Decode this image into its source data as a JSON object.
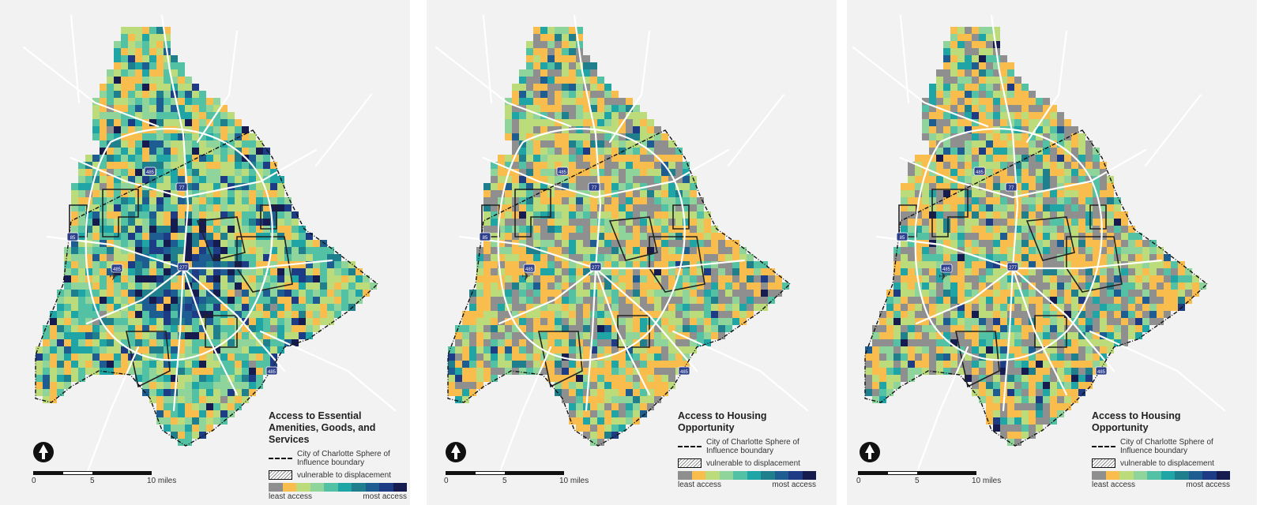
{
  "panels": [
    {
      "title": "Access to Essential Amenities, Goods, and Services",
      "legend": {
        "boundary_label": "City of Charlotte Sphere of Influence boundary",
        "vulnerable_label": "vulnerable to displacement",
        "least_label": "least access",
        "most_label": "most access"
      },
      "scale": {
        "zero": "0",
        "five": "5",
        "ten": "10 miles"
      }
    },
    {
      "title": "Access to Housing Opportunity",
      "legend": {
        "boundary_label": "City of Charlotte Sphere of Influence boundary",
        "vulnerable_label": "vulnerable to displacement",
        "least_label": "least access",
        "most_label": "most access"
      },
      "scale": {
        "zero": "0",
        "five": "5",
        "ten": "10 miles"
      }
    },
    {
      "title": "Access to Housing Opportunity",
      "legend": {
        "boundary_label": "City of Charlotte Sphere of Influence boundary",
        "vulnerable_label": "vulnerable to displacement",
        "least_label": "least access",
        "most_label": "most access"
      },
      "scale": {
        "zero": "0",
        "five": "5",
        "ten": "10 miles"
      }
    }
  ],
  "highway_shields": [
    "485",
    "77",
    "85",
    "277",
    "485",
    "485"
  ],
  "ramp_colors": [
    "#8f8f8f",
    "#f8bd4d",
    "#bcdb7a",
    "#8fd49b",
    "#53c2a4",
    "#1fa5a5",
    "#207f8c",
    "#1e5d92",
    "#1e3b85",
    "#161c4f"
  ],
  "colors": {
    "background": "#f2f2f2",
    "road": "#ffffff",
    "boundary": "#111111"
  },
  "icons": [
    "north-arrow-icon",
    "airport-icon"
  ]
}
